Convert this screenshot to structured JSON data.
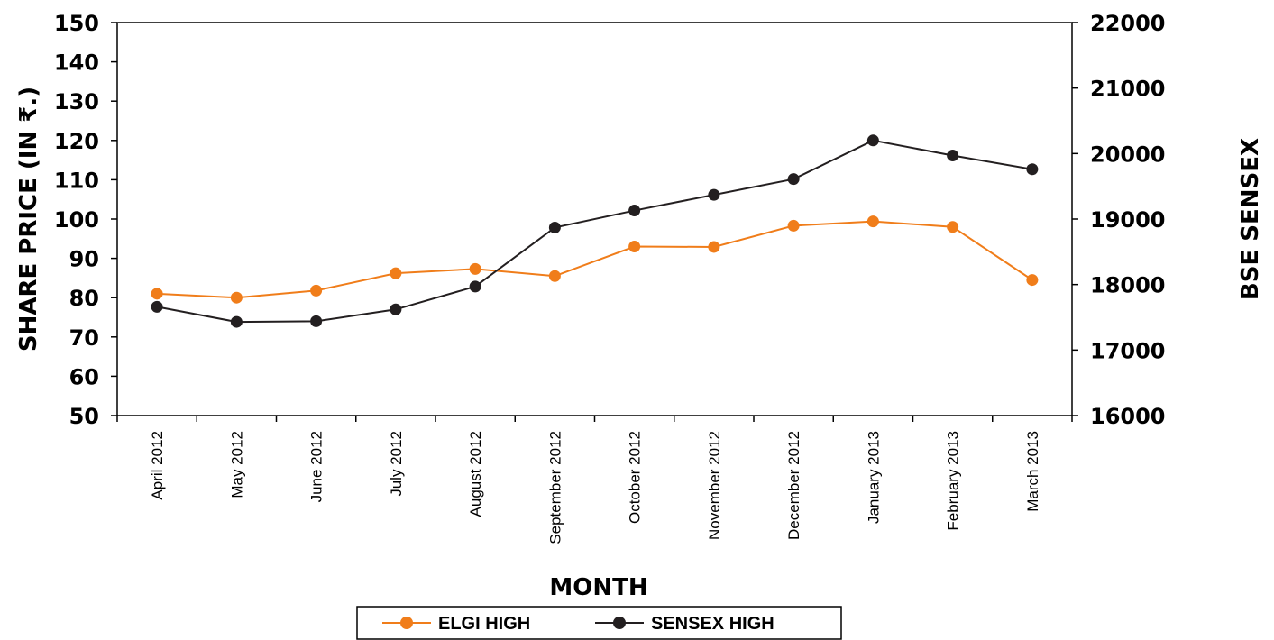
{
  "chart_data": {
    "type": "line",
    "xlabel": "MONTH",
    "ylabel": "SHARE PRICE (IN ₹.)",
    "y2label": "BSE SENSEX",
    "ylim": [
      50,
      150
    ],
    "y2lim": [
      16000,
      22000
    ],
    "yticks": [
      "50",
      "60",
      "70",
      "80",
      "90",
      "100",
      "110",
      "120",
      "130",
      "140",
      "150"
    ],
    "y2ticks": [
      "16000",
      "17000",
      "18000",
      "19000",
      "20000",
      "21000",
      "22000"
    ],
    "categories": [
      "April 2012",
      "May 2012",
      "June 2012",
      "July 2012",
      "August 2012",
      "September 2012",
      "October 2012",
      "November 2012",
      "December 2012",
      "January 2013",
      "February 2013",
      "March 2013"
    ],
    "series": [
      {
        "name": "ELGI HIGH",
        "axis": "left",
        "color": "#F07D1A",
        "values": [
          81.0,
          80.0,
          81.8,
          86.2,
          87.3,
          85.5,
          93.0,
          92.9,
          98.3,
          99.4,
          98.0,
          84.5
        ]
      },
      {
        "name": "SENSEX HIGH",
        "axis": "right",
        "color": "#231F20",
        "values": [
          17660,
          17430,
          17440,
          17620,
          17970,
          18870,
          19130,
          19370,
          19610,
          20200,
          19970,
          19760
        ]
      }
    ],
    "grid": false,
    "legend": "bottom"
  }
}
